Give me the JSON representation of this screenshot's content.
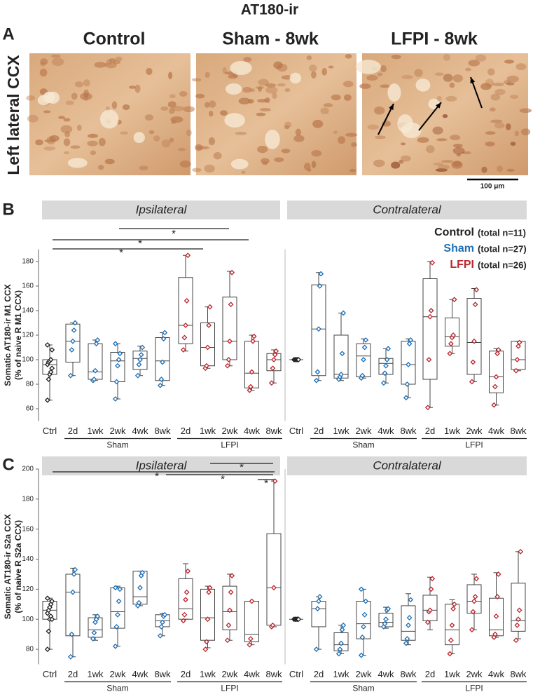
{
  "title": "AT180-ir",
  "panel_a": {
    "label": "A",
    "columns": [
      "Control",
      "Sham - 8wk",
      "LFPI - 8wk"
    ],
    "row_label": "Left lateral CCX",
    "scale_bar": "100 μm"
  },
  "legend": [
    {
      "name": "Control",
      "note": "(total n=11)",
      "color": "#222222"
    },
    {
      "name": "Sham",
      "note": "(total n=27)",
      "color": "#1f6fb5"
    },
    {
      "name": "LFPI",
      "note": "(total n=26)",
      "color": "#b8282e"
    }
  ],
  "chart_data": [
    {
      "type": "box",
      "panel": "B",
      "subtitle": "Ipsilateral",
      "ylabel": [
        "Somatic AT180-ir M1 CCX",
        "(% of naive R M1 CCX)"
      ],
      "ylim": [
        50,
        190
      ],
      "yticks": [
        60,
        80,
        100,
        120,
        140,
        160,
        180
      ],
      "significance": [
        "*",
        "*",
        "*"
      ],
      "control": {
        "name": "Ctrl",
        "color": "#222222",
        "min": 67,
        "q1": 88,
        "median": 96,
        "q3": 100,
        "max": 112,
        "points": [
          67,
          84,
          88,
          90,
          93,
          96,
          98,
          99,
          100,
          108,
          112
        ]
      },
      "series": [
        {
          "name": "Sham",
          "color": "#1f6fb5",
          "categories": [
            "2d",
            "1wk",
            "2wk",
            "4wk",
            "8wk"
          ],
          "boxes": [
            {
              "min": 87,
              "q1": 98,
              "median": 115,
              "q3": 129,
              "max": 130,
              "points": [
                87,
                108,
                115,
                124,
                130
              ]
            },
            {
              "min": 83,
              "q1": 84,
              "median": 90,
              "q3": 113,
              "max": 116,
              "points": [
                83,
                84,
                91,
                113,
                116
              ]
            },
            {
              "min": 68,
              "q1": 82,
              "median": 99,
              "q3": 106,
              "max": 113,
              "points": [
                68,
                82,
                95,
                100,
                105,
                113
              ]
            },
            {
              "min": 87,
              "q1": 92,
              "median": 101,
              "q3": 107,
              "max": 111,
              "points": [
                87,
                96,
                100,
                104,
                110
              ]
            },
            {
              "min": 79,
              "q1": 83,
              "median": 99,
              "q3": 118,
              "max": 122,
              "points": [
                79,
                84,
                98,
                117,
                122
              ]
            }
          ]
        },
        {
          "name": "LFPI",
          "color": "#b8282e",
          "categories": [
            "2d",
            "1wk",
            "2wk",
            "4wk",
            "8wk"
          ],
          "boxes": [
            {
              "min": 107,
              "q1": 113,
              "median": 128,
              "q3": 167,
              "max": 185,
              "points": [
                108,
                118,
                128,
                148,
                185
              ]
            },
            {
              "min": 93,
              "q1": 95,
              "median": 110,
              "q3": 130,
              "max": 143,
              "points": [
                93,
                95,
                110,
                128,
                143
              ]
            },
            {
              "min": 95,
              "q1": 100,
              "median": 115,
              "q3": 151,
              "max": 172,
              "points": [
                95,
                100,
                115,
                145,
                171
              ]
            },
            {
              "min": 75,
              "q1": 77,
              "median": 89,
              "q3": 115,
              "max": 120,
              "points": [
                75,
                78,
                90,
                115,
                119
              ]
            },
            {
              "min": 81,
              "q1": 91,
              "median": 100,
              "q3": 105,
              "max": 108,
              "points": [
                81,
                93,
                100,
                104,
                107
              ]
            }
          ]
        }
      ]
    },
    {
      "type": "box",
      "subtitle": "Contralateral",
      "ylim": [
        50,
        190
      ],
      "control": {
        "name": "Ctrl",
        "color": "#222222",
        "min": 100,
        "q1": 100,
        "median": 100,
        "q3": 100,
        "max": 100,
        "points": [
          100,
          100,
          100,
          100,
          100
        ]
      },
      "series": [
        {
          "name": "Sham",
          "color": "#1f6fb5",
          "categories": [
            "2d",
            "1wk",
            "2wk",
            "4wk",
            "8wk"
          ],
          "boxes": [
            {
              "min": 83,
              "q1": 87,
              "median": 125,
              "q3": 161,
              "max": 171,
              "points": [
                83,
                90,
                125,
                160,
                170
              ]
            },
            {
              "min": 83,
              "q1": 85,
              "median": 88,
              "q3": 120,
              "max": 138,
              "points": [
                84,
                86,
                88,
                105,
                138
              ]
            },
            {
              "min": 85,
              "q1": 86,
              "median": 103,
              "q3": 113,
              "max": 117,
              "points": [
                85,
                87,
                100,
                110,
                116
              ]
            },
            {
              "min": 81,
              "q1": 88,
              "median": 97,
              "q3": 101,
              "max": 109,
              "points": [
                81,
                89,
                95,
                100,
                109
              ]
            },
            {
              "min": 69,
              "q1": 80,
              "median": 96,
              "q3": 115,
              "max": 117,
              "points": [
                69,
                80,
                96,
                113,
                116
              ]
            }
          ]
        },
        {
          "name": "LFPI",
          "color": "#b8282e",
          "categories": [
            "2d",
            "1wk",
            "2wk",
            "4wk",
            "8wk"
          ],
          "boxes": [
            {
              "min": 61,
              "q1": 84,
              "median": 135,
              "q3": 166,
              "max": 180,
              "points": [
                61,
                100,
                135,
                140,
                179
              ]
            },
            {
              "min": 105,
              "q1": 111,
              "median": 119,
              "q3": 134,
              "max": 149,
              "points": [
                105,
                113,
                118,
                120,
                149
              ]
            },
            {
              "min": 82,
              "q1": 88,
              "median": 114,
              "q3": 150,
              "max": 158,
              "points": [
                82,
                98,
                115,
                145,
                157
              ]
            },
            {
              "min": 63,
              "q1": 73,
              "median": 86,
              "q3": 107,
              "max": 109,
              "points": [
                63,
                78,
                86,
                105,
                108
              ]
            },
            {
              "min": 91,
              "q1": 92,
              "median": 100,
              "q3": 115,
              "max": 115,
              "points": [
                91,
                100,
                111,
                114
              ]
            }
          ]
        }
      ]
    },
    {
      "type": "box",
      "panel": "C",
      "subtitle": "Ipsilateral",
      "ylabel": [
        "Somatic AT180-ir S2a CCX",
        "(% of naive R S2a CCX)"
      ],
      "ylim": [
        70,
        200
      ],
      "yticks": [
        80,
        100,
        120,
        140,
        160,
        180,
        200
      ],
      "significance": [
        "*",
        "*",
        "*",
        "*"
      ],
      "control": {
        "name": "Ctrl",
        "color": "#222222",
        "min": 80,
        "q1": 100,
        "median": 106,
        "q3": 112,
        "max": 114,
        "points": [
          80,
          92,
          100,
          102,
          100,
          104,
          106,
          108,
          110,
          112,
          114
        ]
      },
      "series": [
        {
          "name": "Sham",
          "color": "#1f6fb5",
          "categories": [
            "2d",
            "1wk",
            "2wk",
            "4wk",
            "8wk"
          ],
          "boxes": [
            {
              "min": 75,
              "q1": 89,
              "median": 118,
              "q3": 130,
              "max": 134,
              "points": [
                75,
                90,
                118,
                130,
                133
              ]
            },
            {
              "min": 86,
              "q1": 88,
              "median": 93,
              "q3": 101,
              "max": 103,
              "points": [
                87,
                91,
                98,
                100,
                102
              ]
            },
            {
              "min": 82,
              "q1": 94,
              "median": 105,
              "q3": 121,
              "max": 122,
              "points": [
                82,
                95,
                103,
                112,
                120,
                121
              ]
            },
            {
              "min": 109,
              "q1": 110,
              "median": 115,
              "q3": 132,
              "max": 132,
              "points": [
                109,
                111,
                121,
                129,
                131
              ]
            },
            {
              "min": 89,
              "q1": 95,
              "median": 99,
              "q3": 103,
              "max": 104,
              "points": [
                89,
                95,
                98,
                102,
                103
              ]
            }
          ]
        },
        {
          "name": "LFPI",
          "color": "#b8282e",
          "categories": [
            "2d",
            "1wk",
            "2wk",
            "4wk",
            "8wk"
          ],
          "boxes": [
            {
              "min": 100,
              "q1": 100,
              "median": 107,
              "q3": 127,
              "max": 137,
              "points": [
                99,
                103,
                113,
                118,
                132
              ]
            },
            {
              "min": 81,
              "q1": 86,
              "median": 101,
              "q3": 120,
              "max": 122,
              "points": [
                80,
                85,
                100,
                118,
                121
              ]
            },
            {
              "min": 86,
              "q1": 93,
              "median": 105,
              "q3": 122,
              "max": 130,
              "points": [
                86,
                96,
                106,
                118,
                129
              ]
            },
            {
              "min": 83,
              "q1": 85,
              "median": 90,
              "q3": 112,
              "max": 112,
              "points": [
                83,
                87,
                112
              ]
            },
            {
              "min": 95,
              "q1": 96,
              "median": 121,
              "q3": 157,
              "max": 192,
              "points": [
                95,
                96,
                121,
                192
              ]
            }
          ]
        }
      ]
    },
    {
      "type": "box",
      "subtitle": "Contralateral",
      "ylim": [
        70,
        200
      ],
      "control": {
        "name": "Ctrl",
        "color": "#222222",
        "min": 100,
        "q1": 100,
        "median": 100,
        "q3": 100,
        "max": 100,
        "points": [
          100,
          100,
          100,
          100,
          100
        ]
      },
      "series": [
        {
          "name": "Sham",
          "color": "#1f6fb5",
          "categories": [
            "2d",
            "1wk",
            "2wk",
            "4wk",
            "8wk"
          ],
          "boxes": [
            {
              "min": 80,
              "q1": 95,
              "median": 107,
              "q3": 112,
              "max": 115,
              "points": [
                80,
                107,
                112,
                115
              ]
            },
            {
              "min": 77,
              "q1": 79,
              "median": 83,
              "q3": 91,
              "max": 96,
              "points": [
                77,
                80,
                84,
                93,
                96
              ]
            },
            {
              "min": 76,
              "q1": 87,
              "median": 97,
              "q3": 112,
              "max": 120,
              "points": [
                76,
                88,
                95,
                103,
                112,
                120
              ]
            },
            {
              "min": 94,
              "q1": 95,
              "median": 98,
              "q3": 104,
              "max": 108,
              "points": [
                95,
                97,
                100,
                106,
                107
              ]
            },
            {
              "min": 83,
              "q1": 86,
              "median": 92,
              "q3": 109,
              "max": 117,
              "points": [
                84,
                87,
                96,
                101,
                113
              ]
            }
          ]
        },
        {
          "name": "LFPI",
          "color": "#b8282e",
          "categories": [
            "2d",
            "1wk",
            "2wk",
            "4wk",
            "8wk"
          ],
          "boxes": [
            {
              "min": 93,
              "q1": 99,
              "median": 106,
              "q3": 116,
              "max": 128,
              "points": [
                98,
                105,
                106,
                120,
                127
              ]
            },
            {
              "min": 77,
              "q1": 83,
              "median": 93,
              "q3": 110,
              "max": 113,
              "points": [
                77,
                86,
                96,
                107,
                110
              ]
            },
            {
              "min": 93,
              "q1": 104,
              "median": 112,
              "q3": 123,
              "max": 130,
              "points": [
                93,
                105,
                112,
                115,
                127
              ]
            },
            {
              "min": 88,
              "q1": 89,
              "median": 93,
              "q3": 114,
              "max": 131,
              "points": [
                88,
                90,
                102,
                115,
                130
              ]
            },
            {
              "min": 87,
              "q1": 92,
              "median": 99,
              "q3": 124,
              "max": 145,
              "points": [
                86,
                96,
                100,
                106,
                145
              ]
            }
          ]
        }
      ]
    }
  ]
}
